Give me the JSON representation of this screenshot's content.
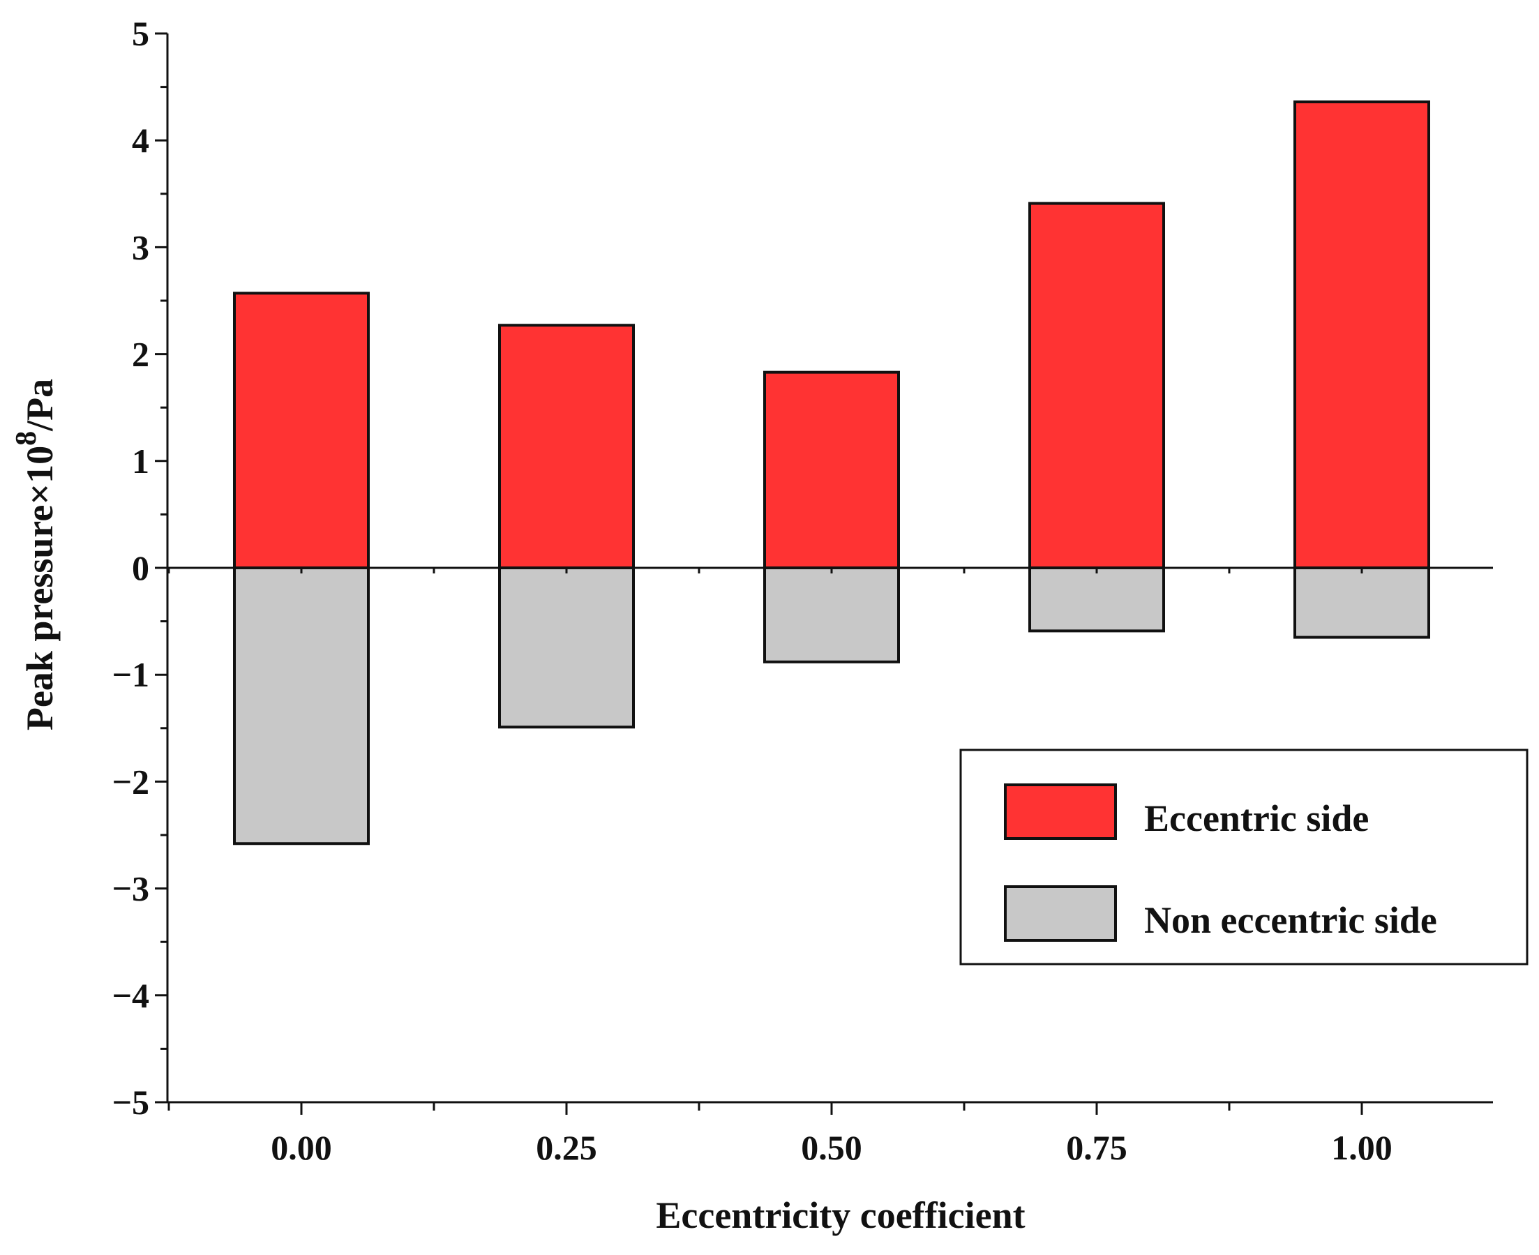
{
  "chart_data": {
    "type": "bar",
    "categories": [
      "0.00",
      "0.25",
      "0.50",
      "0.75",
      "1.00"
    ],
    "series": [
      {
        "name": "Eccentric side",
        "values": [
          2.57,
          2.27,
          1.83,
          3.41,
          4.36
        ],
        "color": "#ff3333"
      },
      {
        "name": "Non eccentric side",
        "values": [
          -2.58,
          -1.49,
          -0.88,
          -0.59,
          -0.65
        ],
        "color": "#c8c8c8"
      }
    ],
    "xlabel": "Eccentricity coefficient",
    "ylabel": {
      "prefix": "Peak pressure×10",
      "exponent": "8",
      "suffix": "/Pa"
    },
    "ylim": [
      -5,
      5
    ],
    "yticks": [
      "5",
      "4",
      "3",
      "2",
      "1",
      "0",
      "−1",
      "−2",
      "−3",
      "−4",
      "−5"
    ],
    "grid": false,
    "legend_position": "lower-right"
  }
}
